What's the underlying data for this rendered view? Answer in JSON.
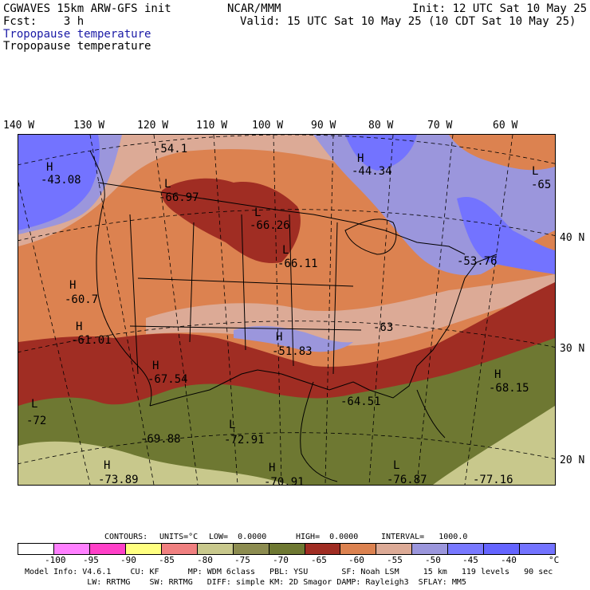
{
  "header": {
    "model": "CGWAVES 15km ARW-GFS init",
    "org": "NCAR/MMM",
    "init": "Init: 12 UTC Sat 10 May 25",
    "fcst": "Fcst:    3 h",
    "valid": "Valid: 15 UTC Sat 10 May 25 (10 CDT Sat 10 May 25)",
    "field_blue": "Tropopause temperature",
    "field_black": "Tropopause temperature"
  },
  "longitudes": [
    "140 W",
    "130 W",
    "120 W",
    "110 W",
    "100 W",
    "90 W",
    "80 W",
    "70 W",
    "60 W"
  ],
  "latitudes": [
    "40 N",
    "30 N",
    "20 N"
  ],
  "extrema": [
    {
      "type": "H",
      "value": "-43.08"
    },
    {
      "type": "",
      "value": "-54.1"
    },
    {
      "type": "H",
      "value": "-44.34"
    },
    {
      "type": "L",
      "value": "-66.97"
    },
    {
      "type": "L",
      "value": "-66.26"
    },
    {
      "type": "L",
      "value": "-66.11"
    },
    {
      "type": "L",
      "value": "-65"
    },
    {
      "type": "",
      "value": "-53.76"
    },
    {
      "type": "H",
      "value": "-60.7"
    },
    {
      "type": "H",
      "value": "-61.01"
    },
    {
      "type": "H",
      "value": "-51.83"
    },
    {
      "type": "",
      "value": "-63"
    },
    {
      "type": "H",
      "value": "-67.54"
    },
    {
      "type": "L",
      "value": "-72"
    },
    {
      "type": "",
      "value": "-69.88"
    },
    {
      "type": "L",
      "value": "-72.91"
    },
    {
      "type": "",
      "value": "-64.51"
    },
    {
      "type": "H",
      "value": "-68.15"
    },
    {
      "type": "H",
      "value": "-73.89"
    },
    {
      "type": "H",
      "value": "-70.91"
    },
    {
      "type": "L",
      "value": "-76.87"
    },
    {
      "type": "",
      "value": "-77.16"
    }
  ],
  "contours": {
    "label": "CONTOURS:",
    "units": "UNITS=°C",
    "low": "LOW=  0.0000",
    "high": "HIGH=  0.0000",
    "interval": "INTERVAL=   1000.0"
  },
  "legend": {
    "colors": [
      "#ffffff",
      "#ff80ff",
      "#ff40c8",
      "#ffff80",
      "#f08080",
      "#c8c88c",
      "#8c8c50",
      "#6e7832",
      "#a02d23",
      "#dc8250",
      "#dcaa96",
      "#9b96dc",
      "#7878ff",
      "#6464ff",
      "#7373ff"
    ],
    "ticks": [
      "-100",
      "-95",
      "-90",
      "-85",
      "-80",
      "-75",
      "-70",
      "-65",
      "-60",
      "-55",
      "-50",
      "-45",
      "-40"
    ],
    "unit": "°C"
  },
  "footer": {
    "line1": "Model Info: V4.6.1    CU: KF      MP: WDM 6class   PBL: YSU       SF: Noah LSM     15 km   119 levels   90 sec",
    "line2": "             LW: RRTMG    SW: RRTMG   DIFF: simple KM: 2D Smagor DAMP: Rayleigh3  SFLAY: MM5"
  }
}
